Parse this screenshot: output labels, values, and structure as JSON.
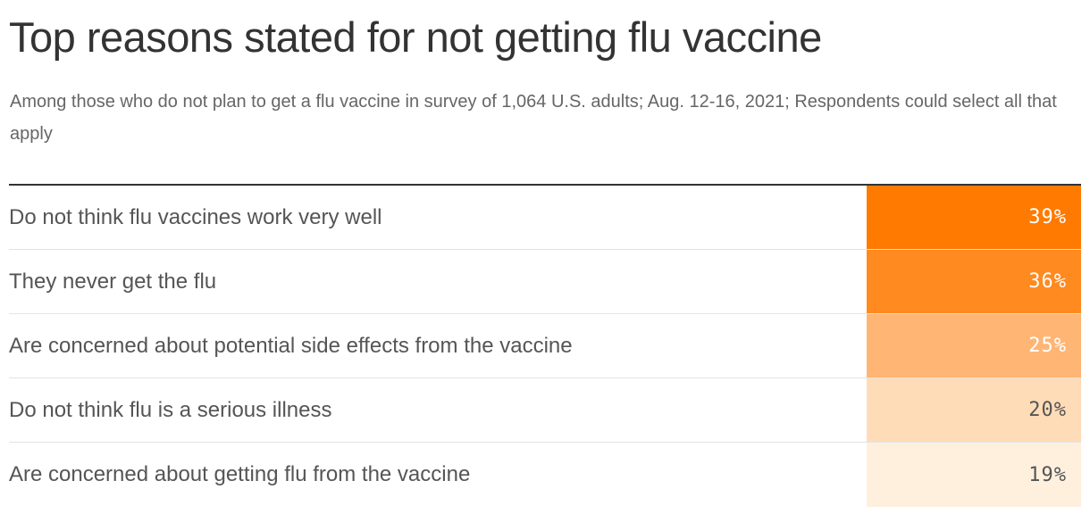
{
  "header": {
    "title": "Top reasons stated for not getting flu vaccine",
    "subtitle": "Among those who do not plan to get a flu vaccine in survey of 1,064 U.S. adults; Aug. 12-16, 2021; Respondents could select all that apply"
  },
  "chart_data": {
    "type": "table",
    "title": "Top reasons stated for not getting flu vaccine",
    "subtitle": "Among those who do not plan to get a flu vaccine in survey of 1,064 U.S. adults; Aug. 12-16, 2021; Respondents could select all that apply",
    "unit": "%",
    "rows": [
      {
        "label": "Do not think flu vaccines work very well",
        "value": 39,
        "display": "39%",
        "fill": "#ff7a00",
        "text_color": "#ffffff"
      },
      {
        "label": "They never get the flu",
        "value": 36,
        "display": "36%",
        "fill": "#ff8a1f",
        "text_color": "#ffffff"
      },
      {
        "label": "Are concerned about potential side effects from the vaccine",
        "value": 25,
        "display": "25%",
        "fill": "#ffb574",
        "text_color": "#ffffff"
      },
      {
        "label": "Do not think flu is a serious illness",
        "value": 20,
        "display": "20%",
        "fill": "#ffdcb8",
        "text_color": "#555555"
      },
      {
        "label": "Are concerned about getting flu from the vaccine",
        "value": 19,
        "display": "19%",
        "fill": "#fff0de",
        "text_color": "#555555"
      }
    ]
  }
}
